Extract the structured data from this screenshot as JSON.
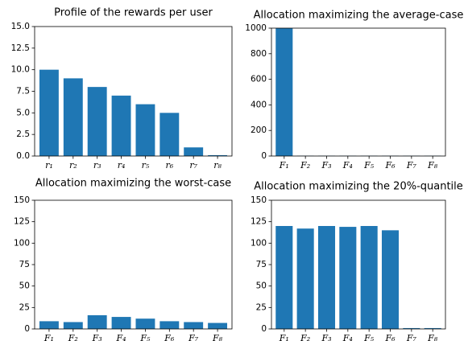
{
  "chart_data": [
    {
      "type": "bar",
      "title": "Profile of the rewards per user",
      "categories": [
        "r₁",
        "r₂",
        "r₃",
        "r₄",
        "r₅",
        "r₆",
        "r₇",
        "r₈"
      ],
      "values": [
        10,
        9,
        8,
        7,
        6,
        5,
        1,
        0.1
      ],
      "color": "#1f77b4",
      "ylim": [
        0,
        15
      ],
      "yticks": [
        {
          "value": 0,
          "label": "0.0"
        },
        {
          "value": 2.5,
          "label": "2.5"
        },
        {
          "value": 5,
          "label": "5.0"
        },
        {
          "value": 7.5,
          "label": "7.5"
        },
        {
          "value": 10,
          "label": "10.0"
        },
        {
          "value": 12.5,
          "label": "12.5"
        },
        {
          "value": 15,
          "label": "15.0"
        }
      ]
    },
    {
      "type": "bar",
      "title": "Allocation maximizing the average-case",
      "categories": [
        "F₁",
        "F₂",
        "F₃",
        "F₄",
        "F₅",
        "F₆",
        "F₇",
        "F₈"
      ],
      "values": [
        1000,
        2,
        2,
        2,
        2,
        2,
        2,
        2
      ],
      "color": "#1f77b4",
      "ylim": [
        0,
        1000
      ],
      "yticks": [
        0,
        200,
        400,
        600,
        800,
        1000
      ]
    },
    {
      "type": "bar",
      "title": "Allocation maximizing the worst-case",
      "categories": [
        "F₁",
        "F₂",
        "F₃",
        "F₄",
        "F₅",
        "F₆",
        "F₇",
        "F₈"
      ],
      "values": [
        9,
        8,
        16,
        14,
        12,
        9,
        8,
        7
      ],
      "color": "#1f77b4",
      "ylim": [
        0,
        150
      ],
      "yticks": [
        0,
        25,
        50,
        75,
        100,
        125,
        150
      ]
    },
    {
      "type": "bar",
      "title": "Allocation maximizing the 20%-quantile",
      "categories": [
        "F₁",
        "F₂",
        "F₃",
        "F₄",
        "F₅",
        "F₆",
        "F₇",
        "F₈"
      ],
      "values": [
        120,
        117,
        120,
        119,
        120,
        115,
        1,
        1
      ],
      "color": "#1f77b4",
      "ylim": [
        0,
        150
      ],
      "yticks": [
        0,
        25,
        50,
        75,
        100,
        125,
        150
      ]
    }
  ]
}
